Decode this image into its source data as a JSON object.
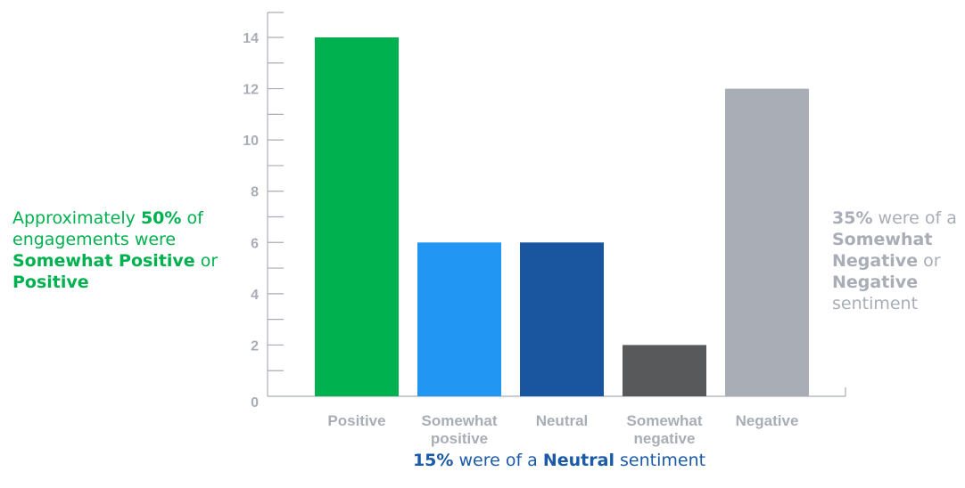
{
  "chart_data": {
    "type": "bar",
    "categories": [
      [
        "Positive"
      ],
      [
        "Somewhat",
        "positive"
      ],
      [
        "Neutral"
      ],
      [
        "Somewhat",
        "negative"
      ],
      [
        "Negative"
      ]
    ],
    "values": [
      14,
      6,
      6,
      2,
      12
    ],
    "colors": [
      "#00b14f",
      "#2196f3",
      "#1a56a0",
      "#58595b",
      "#a9adb6"
    ],
    "ylim": [
      0,
      14
    ],
    "yticks": [
      0,
      2,
      4,
      6,
      8,
      10,
      12,
      14
    ],
    "grid": false,
    "axis_color": "#a9adb6"
  },
  "annotations": {
    "left": {
      "pre1": "Approximately ",
      "pct": "50%",
      "mid1": " of engagements were ",
      "cat1": "Somewhat Positive",
      "mid2": " or ",
      "cat2": "Positive",
      "color": "#00b14f"
    },
    "right": {
      "pct": "35%",
      "mid1": " were of a ",
      "cat1": "Somewhat Negative",
      "mid2": " or ",
      "cat2": "Negative",
      "post": " sentiment",
      "color": "#a9adb6"
    },
    "bottom": {
      "pct": "15%",
      "mid1": " were of a ",
      "cat1": "Neutral",
      "post": " sentiment",
      "color": "#1a5aa6"
    }
  }
}
